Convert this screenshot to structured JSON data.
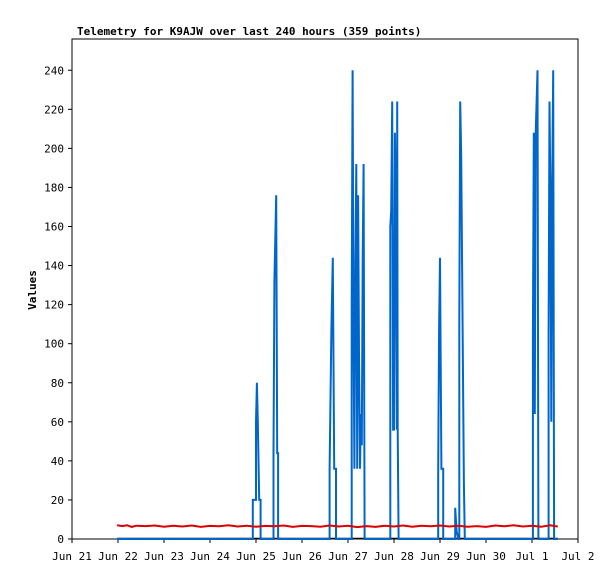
{
  "chart_data": {
    "type": "line",
    "title": "Telemetry for K9AJW over last 240 hours (359 points)",
    "ylabel": "Values",
    "xlabel": "",
    "x_ticks": [
      "Jun 21",
      "Jun 22",
      "Jun 23",
      "Jun 24",
      "Jun 25",
      "Jun 26",
      "Jun 27",
      "Jun 28",
      "Jun 29",
      "Jun 30",
      "Jul 1",
      "Jul 2"
    ],
    "y_ticks": [
      "0",
      "20",
      "40",
      "60",
      "80",
      "100",
      "120",
      "140",
      "160",
      "180",
      "200",
      "220",
      "240"
    ],
    "ylim": [
      0,
      256
    ],
    "xlim_days": [
      0,
      11
    ],
    "legend": "none",
    "grid": false,
    "series": [
      {
        "color": "#0066cc",
        "points": [
          [
            0.98,
            0
          ],
          [
            3.93,
            0
          ],
          [
            3.93,
            20
          ],
          [
            4.0,
            20
          ],
          [
            4.0,
            60
          ],
          [
            4.02,
            80
          ],
          [
            4.04,
            60
          ],
          [
            4.07,
            20
          ],
          [
            4.1,
            20
          ],
          [
            4.1,
            0
          ],
          [
            4.38,
            0
          ],
          [
            4.38,
            44
          ],
          [
            4.4,
            132
          ],
          [
            4.44,
            176
          ],
          [
            4.46,
            44
          ],
          [
            4.48,
            44
          ],
          [
            4.48,
            0
          ],
          [
            5.6,
            0
          ],
          [
            5.6,
            36
          ],
          [
            5.64,
            108
          ],
          [
            5.67,
            144
          ],
          [
            5.7,
            36
          ],
          [
            5.74,
            36
          ],
          [
            5.74,
            0
          ],
          [
            6.08,
            0
          ],
          [
            6.08,
            120
          ],
          [
            6.1,
            240
          ],
          [
            6.12,
            108
          ],
          [
            6.14,
            36
          ],
          [
            6.16,
            144
          ],
          [
            6.18,
            192
          ],
          [
            6.2,
            36
          ],
          [
            6.22,
            176
          ],
          [
            6.24,
            96
          ],
          [
            6.26,
            36
          ],
          [
            6.28,
            64
          ],
          [
            6.3,
            48
          ],
          [
            6.32,
            144
          ],
          [
            6.34,
            192
          ],
          [
            6.36,
            0
          ],
          [
            6.92,
            0
          ],
          [
            6.92,
            160
          ],
          [
            6.94,
            168
          ],
          [
            6.96,
            224
          ],
          [
            6.98,
            56
          ],
          [
            7.0,
            56
          ],
          [
            7.02,
            208
          ],
          [
            7.04,
            168
          ],
          [
            7.06,
            56
          ],
          [
            7.07,
            224
          ],
          [
            7.08,
            56
          ],
          [
            7.1,
            0
          ],
          [
            7.96,
            0
          ],
          [
            7.96,
            36
          ],
          [
            7.98,
            108
          ],
          [
            8.0,
            144
          ],
          [
            8.03,
            36
          ],
          [
            8.07,
            36
          ],
          [
            8.07,
            0
          ],
          [
            8.33,
            0
          ],
          [
            8.33,
            16
          ],
          [
            8.36,
            4
          ],
          [
            8.4,
            0
          ],
          [
            8.42,
            0
          ],
          [
            8.42,
            112
          ],
          [
            8.44,
            224
          ],
          [
            8.46,
            196
          ],
          [
            8.48,
            140
          ],
          [
            8.5,
            84
          ],
          [
            8.52,
            28
          ],
          [
            8.54,
            0
          ],
          [
            10.02,
            0
          ],
          [
            10.02,
            104
          ],
          [
            10.04,
            208
          ],
          [
            10.06,
            64
          ],
          [
            10.08,
            208
          ],
          [
            10.12,
            240
          ],
          [
            10.14,
            0
          ],
          [
            10.36,
            0
          ],
          [
            10.36,
            104
          ],
          [
            10.38,
            224
          ],
          [
            10.4,
            176
          ],
          [
            10.42,
            60
          ],
          [
            10.44,
            180
          ],
          [
            10.46,
            240
          ],
          [
            10.48,
            0
          ],
          [
            10.56,
            0
          ]
        ]
      },
      {
        "color": "#dd0000",
        "points": [
          [
            0.98,
            7
          ],
          [
            1.1,
            6.6
          ],
          [
            1.2,
            7
          ],
          [
            1.3,
            6.2
          ],
          [
            1.4,
            6.8
          ],
          [
            1.6,
            6.6
          ],
          [
            1.8,
            6.9
          ],
          [
            2.0,
            6.3
          ],
          [
            2.2,
            6.8
          ],
          [
            2.4,
            6.4
          ],
          [
            2.6,
            6.9
          ],
          [
            2.8,
            6.2
          ],
          [
            3.0,
            6.7
          ],
          [
            3.2,
            6.5
          ],
          [
            3.4,
            7
          ],
          [
            3.6,
            6.4
          ],
          [
            3.8,
            6.8
          ],
          [
            4.0,
            6.3
          ],
          [
            4.2,
            6.7
          ],
          [
            4.4,
            6.5
          ],
          [
            4.6,
            6.9
          ],
          [
            4.8,
            6.2
          ],
          [
            5.0,
            6.7
          ],
          [
            5.2,
            6.6
          ],
          [
            5.4,
            6.3
          ],
          [
            5.6,
            6.9
          ],
          [
            5.8,
            6.4
          ],
          [
            6.0,
            6.8
          ],
          [
            6.2,
            6.1
          ],
          [
            6.4,
            6.6
          ],
          [
            6.6,
            6.2
          ],
          [
            6.8,
            6.8
          ],
          [
            7.0,
            6.4
          ],
          [
            7.2,
            6.9
          ],
          [
            7.4,
            6.3
          ],
          [
            7.6,
            6.8
          ],
          [
            7.8,
            6.5
          ],
          [
            8.0,
            6.9
          ],
          [
            8.2,
            6.4
          ],
          [
            8.4,
            6.8
          ],
          [
            8.6,
            6.3
          ],
          [
            8.8,
            6.6
          ],
          [
            9.0,
            6.2
          ],
          [
            9.2,
            6.9
          ],
          [
            9.4,
            6.5
          ],
          [
            9.6,
            7
          ],
          [
            9.8,
            6.4
          ],
          [
            10.0,
            6.8
          ],
          [
            10.2,
            6.3
          ],
          [
            10.4,
            7
          ],
          [
            10.5,
            6.6
          ],
          [
            10.56,
            6.4
          ]
        ]
      }
    ]
  }
}
